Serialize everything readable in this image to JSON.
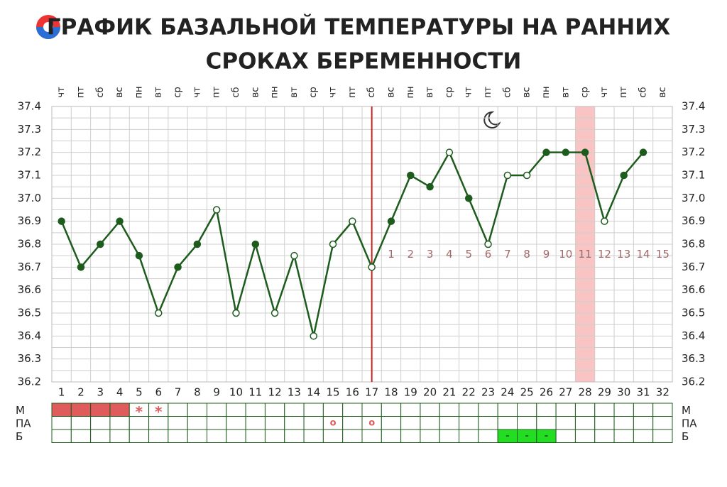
{
  "chart_data": {
    "type": "line",
    "title": [
      "ГРАФИК БАЗАЛЬНОЙ ТЕМПЕРАТУРЫ НА РАННИХ",
      "СРОКАХ БЕРЕМЕННОСТИ"
    ],
    "categories": [
      "1",
      "2",
      "3",
      "4",
      "5",
      "6",
      "7",
      "8",
      "9",
      "10",
      "11",
      "12",
      "13",
      "14",
      "15",
      "16",
      "17",
      "18",
      "19",
      "20",
      "21",
      "22",
      "23",
      "24",
      "25",
      "26",
      "27",
      "28",
      "29",
      "30",
      "31",
      "32"
    ],
    "weekdays": [
      "чт",
      "пт",
      "сб",
      "вс",
      "пн",
      "вт",
      "ср",
      "чт",
      "пт",
      "сб",
      "вс",
      "пн",
      "вт",
      "ср",
      "чт",
      "пт",
      "сб",
      "вс",
      "пн",
      "вт",
      "ср",
      "чт",
      "пт",
      "сб",
      "вс",
      "пн",
      "вт",
      "ср",
      "чт",
      "пт",
      "сб",
      "вс"
    ],
    "series": [
      {
        "color": "#1d5c1d",
        "values": [
          36.9,
          36.7,
          36.8,
          36.9,
          36.75,
          36.5,
          36.7,
          36.8,
          36.95,
          36.5,
          36.8,
          36.5,
          36.75,
          36.4,
          36.8,
          36.9,
          36.7,
          36.9,
          37.1,
          37.05,
          37.2,
          37.0,
          36.8,
          37.1,
          37.1,
          37.2,
          37.2,
          37.2,
          36.9,
          37.1,
          37.2,
          null
        ],
        "hollow": [
          false,
          false,
          false,
          false,
          false,
          true,
          false,
          false,
          true,
          true,
          false,
          true,
          true,
          true,
          true,
          true,
          true,
          false,
          false,
          false,
          true,
          false,
          true,
          true,
          true,
          false,
          false,
          false,
          true,
          false,
          false,
          null
        ]
      }
    ],
    "ylim": [
      36.2,
      37.4
    ],
    "yticks": [
      37.4,
      37.3,
      37.2,
      37.1,
      {
        "value": 37,
        "label": "37.0"
      },
      36.9,
      36.8,
      36.7,
      36.6,
      36.5,
      36.4,
      36.3,
      36.2
    ],
    "grid": true,
    "vline_category": "17",
    "vline_color": "#cc2222",
    "highlight_category": "28",
    "highlight_color": "#f8c4c4",
    "pregnancy_days": [
      null,
      null,
      null,
      null,
      null,
      null,
      null,
      null,
      null,
      null,
      null,
      null,
      null,
      null,
      null,
      null,
      null,
      "1",
      "2",
      "3",
      "4",
      "5",
      "6",
      "7",
      "8",
      "9",
      "10",
      "11",
      "12",
      "13",
      "14",
      "15"
    ],
    "rows": [
      {
        "label": "М",
        "color": "#e05c5c",
        "fill": [
          true,
          true,
          true,
          true,
          false,
          false,
          false,
          false,
          false,
          false,
          false,
          false,
          false,
          false,
          false,
          false,
          false,
          false,
          false,
          false,
          false,
          false,
          false,
          false,
          false,
          false,
          false,
          false,
          false,
          false,
          false,
          false
        ],
        "symbols": [
          null,
          null,
          null,
          null,
          "*",
          "*",
          null,
          null,
          null,
          null,
          null,
          null,
          null,
          null,
          null,
          null,
          null,
          null,
          null,
          null,
          null,
          null,
          null,
          null,
          null,
          null,
          null,
          null,
          null,
          null,
          null,
          null
        ]
      },
      {
        "label": "ПА",
        "color": "#e05c5c",
        "fill": [
          false,
          false,
          false,
          false,
          false,
          false,
          false,
          false,
          false,
          false,
          false,
          false,
          false,
          false,
          false,
          false,
          false,
          false,
          false,
          false,
          false,
          false,
          false,
          false,
          false,
          false,
          false,
          false,
          false,
          false,
          false,
          false
        ],
        "symbols": [
          null,
          null,
          null,
          null,
          null,
          null,
          null,
          null,
          null,
          null,
          null,
          null,
          null,
          null,
          "o",
          null,
          "o",
          null,
          null,
          null,
          null,
          null,
          null,
          null,
          null,
          null,
          null,
          null,
          null,
          null,
          null,
          null
        ]
      },
      {
        "label": "Б",
        "color": "#22dd22",
        "fill": [
          false,
          false,
          false,
          false,
          false,
          false,
          false,
          false,
          false,
          false,
          false,
          false,
          false,
          false,
          false,
          false,
          false,
          false,
          false,
          false,
          false,
          false,
          false,
          true,
          true,
          true,
          false,
          false,
          false,
          false,
          false,
          false
        ],
        "symbols": [
          null,
          null,
          null,
          null,
          null,
          null,
          null,
          null,
          null,
          null,
          null,
          null,
          null,
          null,
          null,
          null,
          null,
          null,
          null,
          null,
          null,
          null,
          null,
          "-",
          "-",
          "-",
          null,
          null,
          null,
          null,
          null,
          null
        ]
      }
    ]
  }
}
